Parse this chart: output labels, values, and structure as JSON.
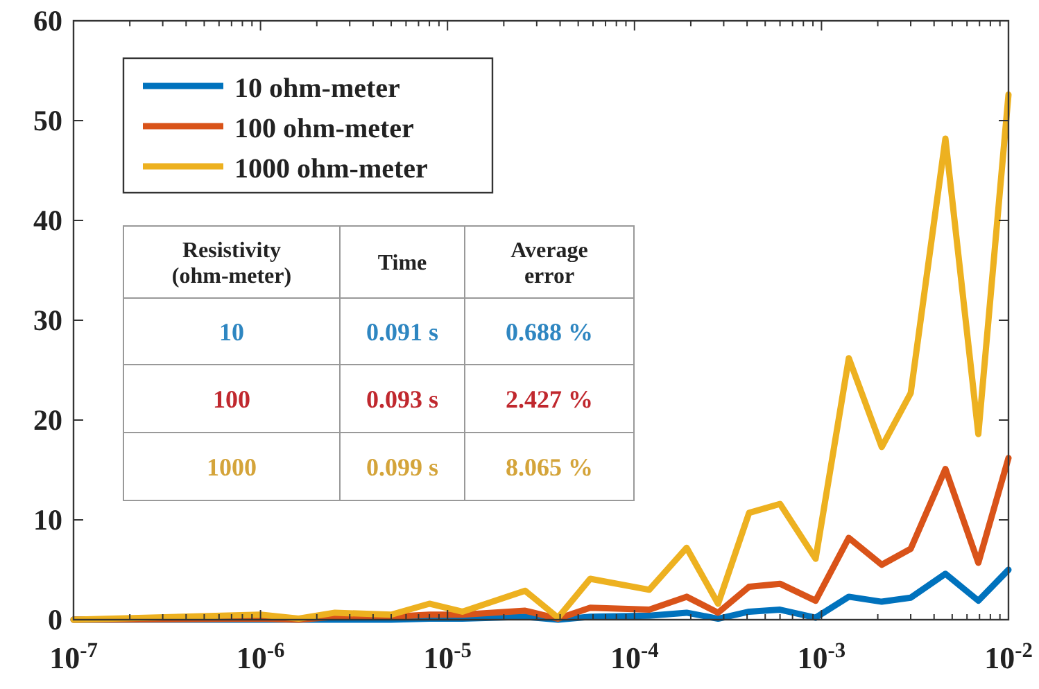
{
  "chart_data": {
    "type": "line",
    "x": [
      1e-07,
      1e-06,
      1.6e-06,
      2.5e-06,
      5e-06,
      8e-06,
      1.2e-05,
      2.6e-05,
      3.9e-05,
      5.8e-05,
      0.00012,
      0.00019,
      0.00028,
      0.00041,
      0.0006,
      0.00093,
      0.0014,
      0.0021,
      0.003,
      0.0046,
      0.0069,
      0.01
    ],
    "series": [
      {
        "name": "10 ohm-meter",
        "color": "#0072bd",
        "values": [
          0,
          0,
          0,
          0,
          0,
          0.1,
          0.1,
          0.3,
          0,
          0.3,
          0.4,
          0.7,
          0.1,
          0.8,
          1.0,
          0.2,
          2.3,
          1.8,
          2.2,
          4.6,
          1.9,
          5.0
        ]
      },
      {
        "name": "100 ohm-meter",
        "color": "#d95319",
        "values": [
          0,
          0.1,
          0,
          0.3,
          0.3,
          0.5,
          0.5,
          0.9,
          0.1,
          1.2,
          1.0,
          2.3,
          0.7,
          3.3,
          3.6,
          1.9,
          8.2,
          5.5,
          7.1,
          15.1,
          5.7,
          16.2
        ]
      },
      {
        "name": "1000 ohm-meter",
        "color": "#edb120",
        "values": [
          0,
          0.5,
          0.1,
          0.7,
          0.5,
          1.6,
          0.8,
          2.9,
          0.2,
          4.1,
          3.0,
          7.2,
          1.6,
          10.7,
          11.6,
          6.1,
          26.2,
          17.3,
          22.7,
          48.2,
          18.6,
          52.6
        ]
      }
    ],
    "log": "x",
    "xlim": [
      1e-07,
      0.01
    ],
    "xticks": [
      {
        "value": 1e-07,
        "label": "10$^{-7}$"
      },
      {
        "value": 1e-06,
        "label": "10$^{-6}$"
      },
      {
        "value": 1e-05,
        "label": "10$^{-5}$"
      },
      {
        "value": 0.0001,
        "label": "10$^{-4}$"
      },
      {
        "value": 0.001,
        "label": "10$^{-3}$"
      },
      {
        "value": 0.01,
        "label": "10$^{-2}$"
      }
    ],
    "ylim": [
      0,
      60
    ],
    "yticks": [
      0,
      10,
      20,
      30,
      40,
      50,
      60
    ],
    "grid": false,
    "legend": "top left",
    "marker": "none",
    "line_style": "solid",
    "annotations": [
      "Resistivity\n(ohm-meter)",
      "Time",
      "Average\nerror",
      "10",
      "0.091 s",
      "0.688 %",
      "100",
      "0.093 s",
      "2.427 %",
      "1000",
      "0.099 s",
      "8.065 %"
    ]
  }
}
